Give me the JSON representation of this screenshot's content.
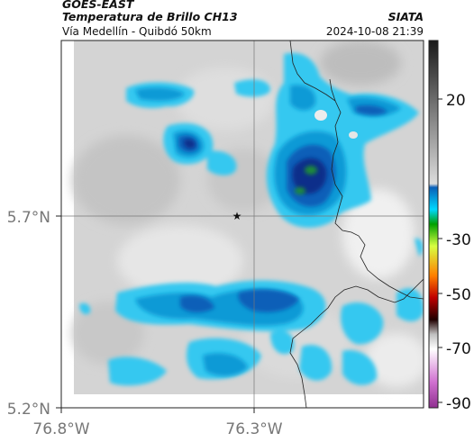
{
  "header": {
    "satellite": "GOES-EAST",
    "product": "Temperatura de Brillo CH13",
    "region": "Vía Medellín - Quibdó 50km",
    "agency": "SIATA",
    "datetime": "2024-10-08 21:39"
  },
  "axes": {
    "lat_ticks": [
      {
        "label": "5.7°N",
        "value": 5.7
      },
      {
        "label": "5.2°N",
        "value": 5.2
      }
    ],
    "lon_ticks": [
      {
        "label": "76.8°W",
        "value": -76.8
      },
      {
        "label": "76.3°W",
        "value": -76.3
      }
    ]
  },
  "colorbar": {
    "labels": [
      "20",
      "-30",
      "-50",
      "-70",
      "-90"
    ],
    "stops": [
      "#1a1a1a",
      "#707070",
      "#d8d8d8",
      "#1aa0d8",
      "#00e0ff",
      "#00c000",
      "#ffff00",
      "#ff8000",
      "#d00000",
      "#300000",
      "#ffffff",
      "#d060c0",
      "#a03080"
    ]
  },
  "map": {
    "marker": "star-marker",
    "colors": {
      "background": "#d2d2d2",
      "cloud_light": "#35c8f0",
      "cloud_mid": "#0a9ad6",
      "cloud_deep": "#0a5fb8",
      "cloud_core": "#0d2f8a",
      "cloud_top": "#1e7a3a"
    }
  }
}
